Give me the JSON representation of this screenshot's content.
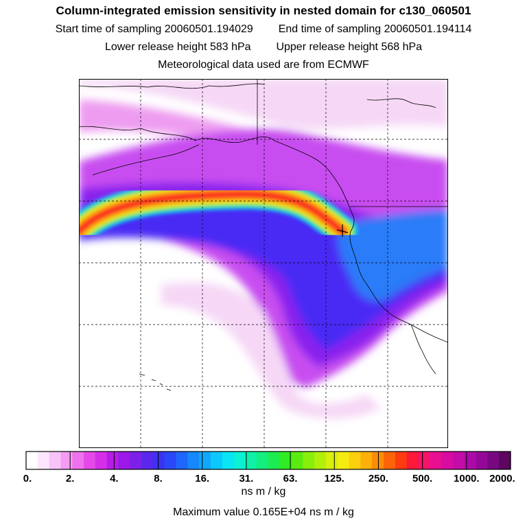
{
  "title": "Column-integrated emission sensitivity in nested domain for c130_060501",
  "info": {
    "start_label": "Start time of sampling",
    "start_value": "20060501.194029",
    "end_label": "End time of sampling",
    "end_value": "20060501.194114",
    "lower_label": "Lower release height",
    "lower_value": "583 hPa",
    "upper_label": "Upper release height",
    "upper_value": "568 hPa",
    "met_source": "Meteorological data used are from ECMWF"
  },
  "colorbar": {
    "tick_labels": [
      "0.",
      "2.",
      "4.",
      "8.",
      "16.",
      "31.",
      "63.",
      "125.",
      "250.",
      "500.",
      "1000.",
      "2000."
    ],
    "colors": [
      "#ffffff",
      "#fde6fd",
      "#f8c4f8",
      "#f49cf4",
      "#ee72ee",
      "#e54ae8",
      "#d62ee8",
      "#b61ce6",
      "#9a18e8",
      "#7c20e8",
      "#5a28ec",
      "#3c32f2",
      "#2a48f8",
      "#1e66fc",
      "#1688fc",
      "#10a8fc",
      "#0cc8fc",
      "#0ae4f4",
      "#0cf0d4",
      "#10f0a8",
      "#14ee7c",
      "#1cec50",
      "#30ec24",
      "#5aec10",
      "#88ee0c",
      "#b2f00c",
      "#d8f00e",
      "#f4ec10",
      "#fcd00c",
      "#fcb008",
      "#fc8c08",
      "#fc6408",
      "#fc3c10",
      "#fc1838",
      "#f41468",
      "#e81090",
      "#d80ca0",
      "#c40ca8",
      "#ac0aa8",
      "#940898",
      "#780880",
      "#5c0660"
    ],
    "unit": "ns m / kg"
  },
  "max_value": {
    "label": "Maximum value",
    "value": "0.165E+04 ns m / kg"
  },
  "map": {
    "release_marker": "release-point-marker",
    "colors": {
      "land": "#ffffff",
      "faint": "#f6d8f6",
      "light": "#ee9cf0",
      "medium": "#c84ef0",
      "strong": "#8a22ee",
      "deep": "#4a2cf4",
      "blue": "#2c7cf8",
      "cyan": "#18c8f8",
      "green": "#30e860",
      "yellow": "#f0e414",
      "orange": "#fc8c08",
      "red": "#fc1c20"
    }
  }
}
